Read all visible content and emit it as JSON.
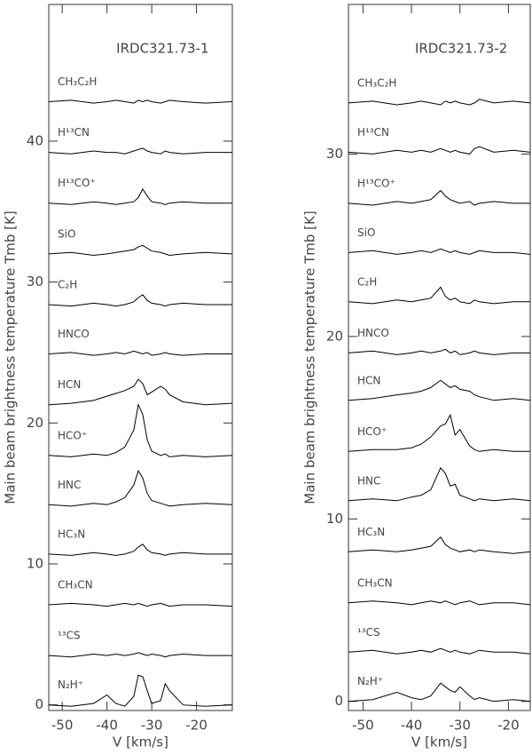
{
  "chart_data": [
    {
      "type": "line",
      "title": "IRDC321.73-1",
      "xlabel": "V [km/s]",
      "ylabel": "Main beam brightness temperature Tmb [K]",
      "x": [
        -53,
        -48,
        -43,
        -40,
        -38,
        -36,
        -34,
        -33,
        -32,
        -31,
        -30,
        -28,
        -27,
        -26,
        -23,
        -18,
        -12
      ],
      "xlim": [
        -53,
        -12
      ],
      "ylim": [
        -0.4,
        49.7
      ],
      "xticks": [
        -50,
        -40,
        -30,
        -20
      ],
      "yticks": [
        0,
        10,
        20,
        30,
        40
      ],
      "series": [
        {
          "name": "CH₃C₂H",
          "color": "#000000",
          "values": [
            42.8,
            42.9,
            42.7,
            42.8,
            42.9,
            42.8,
            42.7,
            42.9,
            42.8,
            42.9,
            42.8,
            42.7,
            42.8,
            42.9,
            42.8,
            42.7,
            42.8
          ]
        },
        {
          "name": "H¹³CN",
          "color": "#000000",
          "values": [
            39.2,
            39.1,
            39.3,
            39.2,
            39.2,
            39.1,
            39.3,
            39.4,
            39.5,
            39.3,
            39.2,
            39.1,
            39.3,
            39.2,
            39.1,
            39.2,
            39.2
          ]
        },
        {
          "name": "H¹³CO⁺",
          "color": "#000000",
          "values": [
            35.6,
            35.5,
            35.7,
            35.6,
            35.5,
            35.6,
            35.7,
            36.0,
            36.6,
            36.1,
            35.7,
            35.6,
            35.5,
            35.6,
            35.7,
            35.6,
            35.6
          ]
        },
        {
          "name": "SiO",
          "color": "#000000",
          "values": [
            32.0,
            32.1,
            31.9,
            32.0,
            32.1,
            32.2,
            32.3,
            32.5,
            32.6,
            32.4,
            32.2,
            32.1,
            32.0,
            31.9,
            32.0,
            32.1,
            32.0
          ]
        },
        {
          "name": "C₂H",
          "color": "#000000",
          "values": [
            28.4,
            28.3,
            28.5,
            28.4,
            28.3,
            28.4,
            28.6,
            28.9,
            29.1,
            28.7,
            28.5,
            28.4,
            28.3,
            28.4,
            28.5,
            28.4,
            28.4
          ]
        },
        {
          "name": "HNCO",
          "color": "#000000",
          "values": [
            24.9,
            25.0,
            24.8,
            24.9,
            25.0,
            24.9,
            25.1,
            25.0,
            24.9,
            25.0,
            24.8,
            24.9,
            25.0,
            24.9,
            24.8,
            24.9,
            24.9
          ]
        },
        {
          "name": "HCN",
          "color": "#000000",
          "values": [
            21.3,
            21.4,
            21.6,
            21.9,
            22.1,
            22.3,
            22.6,
            23.1,
            22.8,
            22.0,
            22.2,
            22.6,
            22.4,
            22.0,
            21.5,
            21.3,
            21.4
          ]
        },
        {
          "name": "HCO⁺",
          "color": "#000000",
          "values": [
            17.7,
            17.6,
            17.8,
            17.7,
            17.9,
            18.3,
            19.5,
            21.3,
            20.6,
            18.8,
            18.0,
            17.7,
            17.8,
            17.6,
            17.7,
            17.6,
            17.7
          ]
        },
        {
          "name": "HNC",
          "color": "#000000",
          "values": [
            14.2,
            14.1,
            14.3,
            14.2,
            14.4,
            14.7,
            15.6,
            16.6,
            16.1,
            15.0,
            14.5,
            14.3,
            14.2,
            14.1,
            14.2,
            14.3,
            14.2
          ]
        },
        {
          "name": "HC₃N",
          "color": "#000000",
          "values": [
            10.7,
            10.6,
            10.8,
            10.7,
            10.6,
            10.7,
            10.9,
            11.2,
            11.4,
            11.0,
            10.8,
            10.7,
            10.6,
            10.7,
            10.8,
            10.7,
            10.7
          ]
        },
        {
          "name": "CH₃CN",
          "color": "#000000",
          "values": [
            7.1,
            7.2,
            7.1,
            7.0,
            7.1,
            7.2,
            7.1,
            7.2,
            7.1,
            7.0,
            7.1,
            7.2,
            7.1,
            7.0,
            7.1,
            7.1,
            7.0
          ]
        },
        {
          "name": "¹³CS",
          "color": "#000000",
          "values": [
            3.5,
            3.4,
            3.6,
            3.5,
            3.6,
            3.5,
            3.6,
            3.7,
            3.6,
            3.5,
            3.6,
            3.5,
            3.4,
            3.5,
            3.6,
            3.5,
            3.5
          ]
        },
        {
          "name": "N₂H⁺",
          "color": "#000000",
          "values": [
            0.0,
            -0.1,
            0.1,
            0.7,
            0.1,
            -0.1,
            0.6,
            2.1,
            2.0,
            1.0,
            0.1,
            0.3,
            1.5,
            1.0,
            0.0,
            -0.1,
            0.0
          ]
        }
      ]
    },
    {
      "type": "line",
      "title": "IRDC321.73-2",
      "xlabel": "V [km/s]",
      "ylabel": "Main beam brightness temperature Tmb [K]",
      "x": [
        -53,
        -48,
        -43,
        -40,
        -38,
        -36,
        -34,
        -33,
        -32,
        -31,
        -30,
        -28,
        -27,
        -26,
        -23,
        -19,
        -15.5
      ],
      "xlim": [
        -53,
        -15.5
      ],
      "ylim": [
        -0.5,
        38.2
      ],
      "xticks": [
        -50,
        -40,
        -30,
        -20
      ],
      "yticks": [
        0,
        10,
        20,
        30
      ],
      "series": [
        {
          "name": "CH₃C₂H",
          "color": "#000000",
          "values": [
            32.8,
            32.9,
            32.7,
            32.8,
            32.9,
            32.8,
            32.7,
            32.9,
            32.8,
            32.9,
            32.8,
            32.7,
            32.8,
            33.0,
            32.8,
            32.9,
            32.8
          ]
        },
        {
          "name": "H¹³CN",
          "color": "#000000",
          "values": [
            30.1,
            30.0,
            30.2,
            30.1,
            30.2,
            30.1,
            30.3,
            30.2,
            30.1,
            30.2,
            30.1,
            30.0,
            30.3,
            30.4,
            30.1,
            30.2,
            30.1
          ]
        },
        {
          "name": "H¹³CO⁺",
          "color": "#000000",
          "values": [
            27.3,
            27.2,
            27.4,
            27.3,
            27.4,
            27.5,
            28.0,
            27.7,
            27.5,
            27.4,
            27.3,
            27.4,
            27.2,
            27.3,
            27.4,
            27.3,
            27.3
          ]
        },
        {
          "name": "SiO",
          "color": "#000000",
          "values": [
            24.6,
            24.7,
            24.5,
            24.6,
            24.7,
            24.6,
            24.8,
            24.7,
            24.6,
            24.7,
            24.6,
            24.5,
            24.6,
            24.7,
            24.6,
            24.6,
            24.5
          ]
        },
        {
          "name": "C₂H",
          "color": "#000000",
          "values": [
            21.9,
            21.8,
            22.0,
            21.9,
            22.0,
            22.1,
            22.7,
            22.2,
            22.0,
            22.1,
            21.9,
            21.8,
            22.0,
            21.9,
            21.8,
            21.9,
            21.9
          ]
        },
        {
          "name": "HNCO",
          "color": "#000000",
          "values": [
            19.1,
            19.2,
            19.0,
            19.1,
            19.2,
            19.1,
            19.2,
            19.3,
            19.1,
            19.2,
            19.0,
            19.1,
            19.2,
            19.1,
            19.0,
            19.1,
            19.1
          ]
        },
        {
          "name": "HCN",
          "color": "#000000",
          "values": [
            16.5,
            16.6,
            16.8,
            16.9,
            17.0,
            17.2,
            17.6,
            17.4,
            17.2,
            17.3,
            17.1,
            17.0,
            16.8,
            16.7,
            16.5,
            16.6,
            16.5
          ]
        },
        {
          "name": "HCO⁺",
          "color": "#000000",
          "values": [
            13.7,
            13.8,
            13.8,
            13.9,
            14.1,
            14.5,
            15.1,
            15.2,
            15.7,
            14.6,
            14.9,
            14.0,
            13.8,
            13.7,
            13.8,
            13.7,
            13.7
          ]
        },
        {
          "name": "HNC",
          "color": "#000000",
          "values": [
            11.0,
            11.1,
            11.0,
            11.2,
            11.3,
            11.6,
            12.8,
            12.5,
            11.8,
            11.9,
            11.3,
            11.1,
            11.0,
            11.1,
            11.0,
            11.1,
            11.0
          ]
        },
        {
          "name": "HC₃N",
          "color": "#000000",
          "values": [
            8.2,
            8.3,
            8.2,
            8.3,
            8.4,
            8.5,
            9.0,
            8.6,
            8.4,
            8.3,
            8.2,
            8.3,
            8.2,
            8.3,
            8.2,
            8.1,
            8.2
          ]
        },
        {
          "name": "CH₃CN",
          "color": "#000000",
          "values": [
            5.4,
            5.5,
            5.4,
            5.3,
            5.4,
            5.5,
            5.4,
            5.5,
            5.4,
            5.3,
            5.4,
            5.5,
            5.4,
            5.3,
            5.4,
            5.4,
            5.3
          ]
        },
        {
          "name": "¹³CS",
          "color": "#000000",
          "values": [
            2.7,
            2.8,
            2.6,
            2.7,
            2.8,
            2.7,
            2.9,
            2.8,
            2.7,
            2.8,
            2.7,
            2.6,
            2.7,
            2.8,
            2.7,
            2.7,
            2.6
          ]
        },
        {
          "name": "N₂H⁺",
          "color": "#000000",
          "values": [
            0.0,
            0.1,
            0.5,
            0.2,
            0.1,
            0.3,
            1.0,
            0.8,
            0.6,
            0.5,
            0.8,
            0.3,
            0.1,
            0.2,
            0.0,
            0.1,
            0.0
          ]
        }
      ]
    }
  ]
}
